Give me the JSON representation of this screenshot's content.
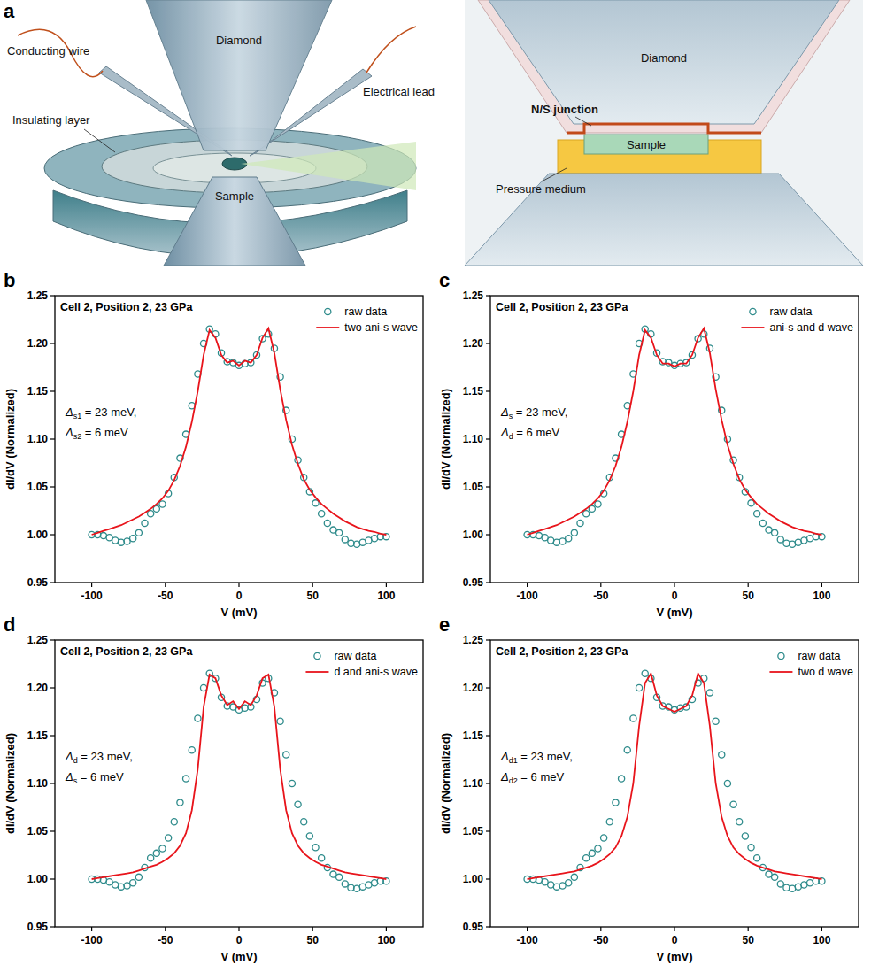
{
  "diagram": {
    "label": "a",
    "left_labels": [
      "Conducting wire",
      "Diamond",
      "Electrical lead",
      "Insulating layer",
      "Sample"
    ],
    "right_labels": [
      "Diamond",
      "N/S junction",
      "Sample",
      "Pressure medium"
    ]
  },
  "chart_data": [
    {
      "type": "line",
      "label": "b",
      "title": "Cell 2, Position 2, 23 GPa",
      "x_label": "V (mV)",
      "y_label": "dI/dV (Normalized)",
      "annotations": [
        "Δs1 = 23 meV,",
        "Δs2 = 6 meV"
      ],
      "x": [
        -100,
        -96,
        -92,
        -88,
        -84,
        -80,
        -76,
        -72,
        -68,
        -64,
        -60,
        -56,
        -52,
        -48,
        -44,
        -40,
        -36,
        -32,
        -28,
        -24,
        -20,
        -16,
        -12,
        -8,
        -4,
        0,
        4,
        8,
        12,
        16,
        20,
        24,
        28,
        32,
        36,
        40,
        44,
        48,
        52,
        56,
        60,
        64,
        68,
        72,
        76,
        80,
        84,
        88,
        92,
        96,
        100
      ],
      "series": [
        {
          "name": "raw data",
          "type": "scatter",
          "marker": "circle",
          "color": "#2e8b8b",
          "values": [
            1.0,
            1.0,
            0.999,
            0.997,
            0.994,
            0.992,
            0.993,
            0.996,
            1.002,
            1.012,
            1.022,
            1.027,
            1.032,
            1.043,
            1.06,
            1.08,
            1.105,
            1.135,
            1.168,
            1.2,
            1.215,
            1.21,
            1.19,
            1.181,
            1.18,
            1.177,
            1.179,
            1.18,
            1.188,
            1.205,
            1.21,
            1.195,
            1.165,
            1.13,
            1.1,
            1.078,
            1.06,
            1.045,
            1.033,
            1.022,
            1.012,
            1.005,
            1.002,
            0.995,
            0.991,
            0.99,
            0.992,
            0.994,
            0.996,
            0.998,
            0.998
          ]
        },
        {
          "name": "two ani-s wave",
          "type": "line",
          "line_style": "solid",
          "color": "#e8141b",
          "values": [
            1.0,
            1.002,
            1.004,
            1.006,
            1.008,
            1.01,
            1.013,
            1.016,
            1.019,
            1.023,
            1.027,
            1.032,
            1.038,
            1.046,
            1.057,
            1.072,
            1.092,
            1.118,
            1.15,
            1.188,
            1.214,
            1.206,
            1.188,
            1.18,
            1.182,
            1.177,
            1.182,
            1.18,
            1.188,
            1.206,
            1.216,
            1.19,
            1.152,
            1.12,
            1.094,
            1.074,
            1.058,
            1.047,
            1.039,
            1.032,
            1.027,
            1.022,
            1.018,
            1.014,
            1.011,
            1.008,
            1.006,
            1.004,
            1.003,
            1.001,
            1.0
          ]
        }
      ],
      "xlim": [
        -125,
        125
      ],
      "ylim": [
        0.95,
        1.25
      ],
      "xticks": [
        -100,
        -50,
        0,
        50,
        100
      ],
      "yticks": [
        0.95,
        {
          "value": 1.0,
          "label": "1.00"
        },
        1.05,
        {
          "value": 1.1,
          "label": "1.10"
        },
        1.15,
        {
          "value": 1.2,
          "label": "1.20"
        },
        1.25
      ],
      "legend": "upper right"
    },
    {
      "type": "line",
      "label": "c",
      "title": "Cell 2, Position 2, 23 GPa",
      "x_label": "V (mV)",
      "y_label": "dI/dV (Normalized)",
      "annotations": [
        "Δs = 23 meV,",
        "Δd = 6 meV"
      ],
      "x": [
        -100,
        -96,
        -92,
        -88,
        -84,
        -80,
        -76,
        -72,
        -68,
        -64,
        -60,
        -56,
        -52,
        -48,
        -44,
        -40,
        -36,
        -32,
        -28,
        -24,
        -20,
        -16,
        -12,
        -8,
        -4,
        0,
        4,
        8,
        12,
        16,
        20,
        24,
        28,
        32,
        36,
        40,
        44,
        48,
        52,
        56,
        60,
        64,
        68,
        72,
        76,
        80,
        84,
        88,
        92,
        96,
        100
      ],
      "series": [
        {
          "name": "raw data",
          "type": "scatter",
          "marker": "circle",
          "color": "#2e8b8b",
          "values": [
            1.0,
            1.0,
            0.999,
            0.997,
            0.994,
            0.992,
            0.993,
            0.996,
            1.002,
            1.012,
            1.022,
            1.027,
            1.032,
            1.043,
            1.06,
            1.08,
            1.105,
            1.135,
            1.168,
            1.2,
            1.215,
            1.21,
            1.19,
            1.181,
            1.18,
            1.177,
            1.179,
            1.18,
            1.188,
            1.205,
            1.21,
            1.195,
            1.165,
            1.13,
            1.1,
            1.078,
            1.06,
            1.045,
            1.033,
            1.022,
            1.012,
            1.005,
            1.002,
            0.995,
            0.991,
            0.99,
            0.992,
            0.994,
            0.996,
            0.998,
            0.998
          ]
        },
        {
          "name": "ani-s and d wave",
          "type": "line",
          "line_style": "solid",
          "color": "#e8141b",
          "values": [
            1.0,
            1.002,
            1.004,
            1.006,
            1.008,
            1.01,
            1.013,
            1.016,
            1.019,
            1.023,
            1.027,
            1.032,
            1.038,
            1.046,
            1.057,
            1.072,
            1.092,
            1.118,
            1.15,
            1.188,
            1.214,
            1.206,
            1.188,
            1.179,
            1.179,
            1.176,
            1.179,
            1.179,
            1.188,
            1.206,
            1.216,
            1.19,
            1.152,
            1.12,
            1.094,
            1.074,
            1.058,
            1.047,
            1.039,
            1.032,
            1.027,
            1.022,
            1.018,
            1.014,
            1.011,
            1.008,
            1.006,
            1.004,
            1.003,
            1.001,
            1.0
          ]
        }
      ],
      "xlim": [
        -125,
        125
      ],
      "ylim": [
        0.95,
        1.25
      ],
      "xticks": [
        -100,
        -50,
        0,
        50,
        100
      ],
      "yticks": [
        0.95,
        {
          "value": 1.0,
          "label": "1.00"
        },
        1.05,
        {
          "value": 1.1,
          "label": "1.10"
        },
        1.15,
        {
          "value": 1.2,
          "label": "1.20"
        },
        1.25
      ],
      "legend": "upper right"
    },
    {
      "type": "line",
      "label": "d",
      "title": "Cell 2, Position 2, 23 GPa",
      "x_label": "V (mV)",
      "y_label": "dI/dV (Normalized)",
      "annotations": [
        "Δd = 23 meV,",
        "Δs = 6 meV"
      ],
      "x": [
        -100,
        -96,
        -92,
        -88,
        -84,
        -80,
        -76,
        -72,
        -68,
        -64,
        -60,
        -56,
        -52,
        -48,
        -44,
        -40,
        -36,
        -32,
        -28,
        -24,
        -20,
        -16,
        -12,
        -8,
        -4,
        0,
        4,
        8,
        12,
        16,
        20,
        24,
        28,
        32,
        36,
        40,
        44,
        48,
        52,
        56,
        60,
        64,
        68,
        72,
        76,
        80,
        84,
        88,
        92,
        96,
        100
      ],
      "series": [
        {
          "name": "raw data",
          "type": "scatter",
          "marker": "circle",
          "color": "#2e8b8b",
          "values": [
            1.0,
            1.0,
            0.999,
            0.997,
            0.994,
            0.992,
            0.993,
            0.996,
            1.002,
            1.012,
            1.022,
            1.027,
            1.032,
            1.043,
            1.06,
            1.08,
            1.105,
            1.135,
            1.168,
            1.2,
            1.215,
            1.21,
            1.19,
            1.181,
            1.18,
            1.177,
            1.179,
            1.18,
            1.188,
            1.205,
            1.21,
            1.195,
            1.165,
            1.13,
            1.1,
            1.078,
            1.06,
            1.045,
            1.033,
            1.022,
            1.012,
            1.005,
            1.002,
            0.995,
            0.991,
            0.99,
            0.992,
            0.994,
            0.996,
            0.998,
            0.998
          ]
        },
        {
          "name": "d and ani-s wave",
          "type": "line",
          "line_style": "solid",
          "color": "#e8141b",
          "values": [
            1.0,
            1.001,
            1.002,
            1.003,
            1.004,
            1.005,
            1.006,
            1.007,
            1.009,
            1.011,
            1.013,
            1.015,
            1.018,
            1.022,
            1.027,
            1.035,
            1.048,
            1.072,
            1.115,
            1.18,
            1.214,
            1.21,
            1.192,
            1.182,
            1.186,
            1.178,
            1.186,
            1.182,
            1.192,
            1.21,
            1.214,
            1.18,
            1.115,
            1.072,
            1.048,
            1.035,
            1.027,
            1.022,
            1.018,
            1.015,
            1.013,
            1.011,
            1.009,
            1.007,
            1.006,
            1.005,
            1.004,
            1.003,
            1.002,
            1.001,
            1.0
          ]
        }
      ],
      "xlim": [
        -125,
        125
      ],
      "ylim": [
        0.95,
        1.25
      ],
      "xticks": [
        -100,
        -50,
        0,
        50,
        100
      ],
      "yticks": [
        0.95,
        {
          "value": 1.0,
          "label": "1.00"
        },
        1.05,
        {
          "value": 1.1,
          "label": "1.10"
        },
        1.15,
        {
          "value": 1.2,
          "label": "1.20"
        },
        1.25
      ],
      "legend": "upper right"
    },
    {
      "type": "line",
      "label": "e",
      "title": "Cell 2, Position 2, 23 GPa",
      "x_label": "V (mV)",
      "y_label": "dI/dV (Normalized)",
      "annotations": [
        "Δd1 = 23 meV,",
        "Δd2 = 6 meV"
      ],
      "x": [
        -100,
        -96,
        -92,
        -88,
        -84,
        -80,
        -76,
        -72,
        -68,
        -64,
        -60,
        -56,
        -52,
        -48,
        -44,
        -40,
        -36,
        -32,
        -28,
        -24,
        -20,
        -16,
        -12,
        -8,
        -4,
        0,
        4,
        8,
        12,
        16,
        20,
        24,
        28,
        32,
        36,
        40,
        44,
        48,
        52,
        56,
        60,
        64,
        68,
        72,
        76,
        80,
        84,
        88,
        92,
        96,
        100
      ],
      "series": [
        {
          "name": "raw data",
          "type": "scatter",
          "marker": "circle",
          "color": "#2e8b8b",
          "values": [
            1.0,
            1.0,
            0.999,
            0.997,
            0.994,
            0.992,
            0.993,
            0.996,
            1.002,
            1.012,
            1.022,
            1.027,
            1.032,
            1.043,
            1.06,
            1.08,
            1.105,
            1.135,
            1.168,
            1.2,
            1.215,
            1.21,
            1.19,
            1.181,
            1.18,
            1.177,
            1.179,
            1.18,
            1.188,
            1.205,
            1.21,
            1.195,
            1.165,
            1.13,
            1.1,
            1.078,
            1.06,
            1.045,
            1.033,
            1.022,
            1.012,
            1.005,
            1.002,
            0.995,
            0.991,
            0.99,
            0.992,
            0.994,
            0.996,
            0.998,
            0.998
          ]
        },
        {
          "name": "two d wave",
          "type": "line",
          "line_style": "solid",
          "color": "#e8141b",
          "values": [
            1.0,
            1.001,
            1.002,
            1.003,
            1.004,
            1.005,
            1.006,
            1.007,
            1.008,
            1.01,
            1.012,
            1.014,
            1.017,
            1.021,
            1.026,
            1.033,
            1.045,
            1.065,
            1.1,
            1.16,
            1.205,
            1.215,
            1.192,
            1.181,
            1.178,
            1.175,
            1.178,
            1.181,
            1.192,
            1.215,
            1.205,
            1.16,
            1.1,
            1.065,
            1.045,
            1.033,
            1.026,
            1.021,
            1.017,
            1.014,
            1.012,
            1.01,
            1.008,
            1.007,
            1.006,
            1.005,
            1.004,
            1.003,
            1.002,
            1.001,
            1.0
          ]
        }
      ],
      "xlim": [
        -125,
        125
      ],
      "ylim": [
        0.95,
        1.25
      ],
      "xticks": [
        -100,
        -50,
        0,
        50,
        100
      ],
      "yticks": [
        0.95,
        {
          "value": 1.0,
          "label": "1.00"
        },
        1.05,
        {
          "value": 1.1,
          "label": "1.10"
        },
        1.15,
        {
          "value": 1.2,
          "label": "1.20"
        },
        1.25
      ],
      "legend": "upper right"
    }
  ]
}
